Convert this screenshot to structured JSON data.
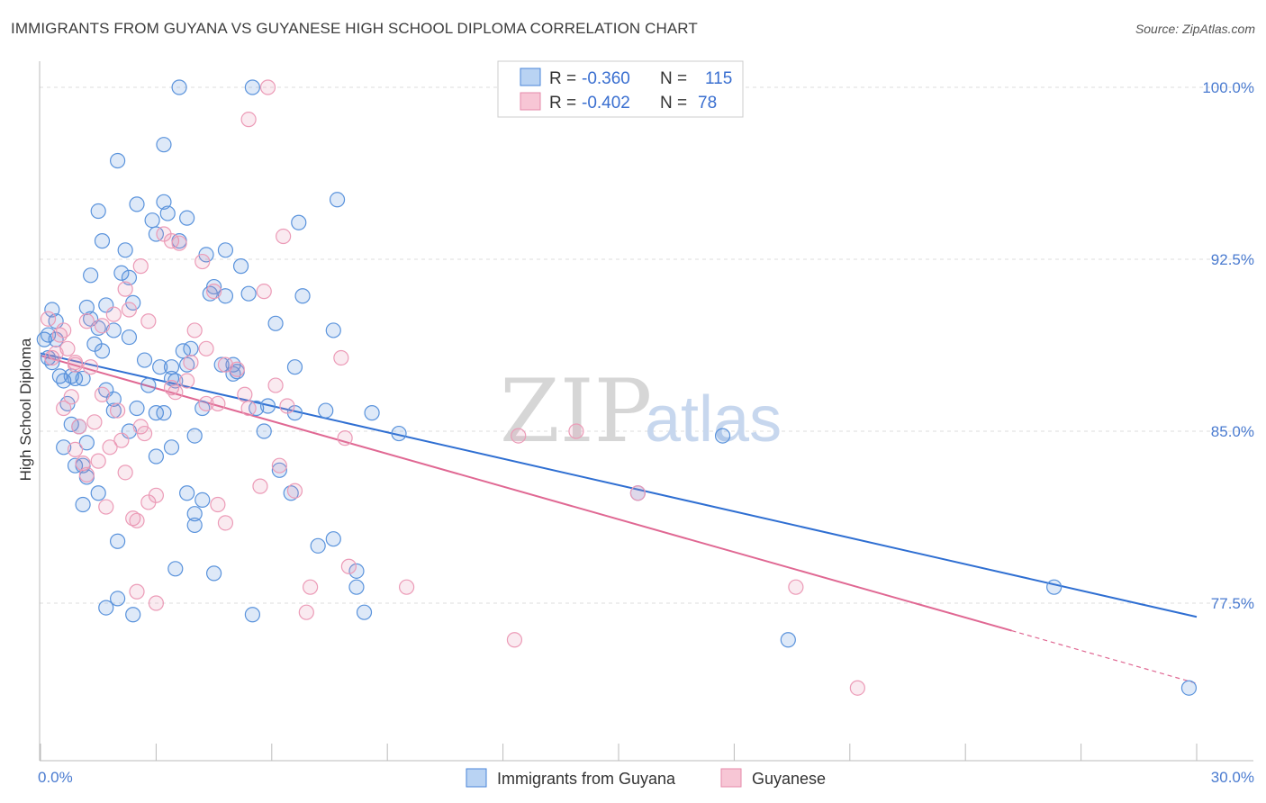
{
  "title": "IMMIGRANTS FROM GUYANA VS GUYANESE HIGH SCHOOL DIPLOMA CORRELATION CHART",
  "source": "Source: ZipAtlas.com",
  "watermark": {
    "part1": "ZIP",
    "part2": "atlas"
  },
  "colors": {
    "blue": "#4a86d8",
    "pink": "#e68aaa",
    "blue_line": "#2f6fd2",
    "pink_line": "#e06893",
    "grid": "#dddddd",
    "tick_label": "#4a7bd0"
  },
  "legend": {
    "rows": [
      {
        "r_label": "R = ",
        "r_value": "-0.360",
        "n_label": "N = ",
        "n_value": "115",
        "color": "blue"
      },
      {
        "r_label": "R = ",
        "r_value": "-0.402",
        "n_label": "N = ",
        "n_value": "78",
        "color": "pink"
      }
    ]
  },
  "bottom_legend": [
    "Immigrants from Guyana",
    "Guyanese"
  ],
  "chart_data": {
    "type": "scatter",
    "title": "IMMIGRANTS FROM GUYANA VS GUYANESE HIGH SCHOOL DIPLOMA CORRELATION CHART",
    "xlabel": "",
    "ylabel": "High School Diploma",
    "xlim": [
      0,
      30
    ],
    "ylim": [
      71.6,
      101.5
    ],
    "x_tick_labels": [
      {
        "value": 0,
        "label": "0.0%"
      },
      {
        "value": 30,
        "label": "30.0%"
      }
    ],
    "y_tick_labels": [
      {
        "value": 100,
        "label": "100.0%"
      },
      {
        "value": 92.5,
        "label": "92.5%"
      },
      {
        "value": 85,
        "label": "85.0%"
      },
      {
        "value": 77.5,
        "label": "77.5%"
      }
    ],
    "grid": true,
    "legend_position": "top-center",
    "series": [
      {
        "name": "Immigrants from Guyana",
        "color": "#4a86d8",
        "trend": {
          "x0": 0,
          "y0": 88.4,
          "x1": 30,
          "y1": 76.9
        },
        "points": [
          [
            0.1,
            89.0
          ],
          [
            0.3,
            90.3
          ],
          [
            0.4,
            89.8
          ],
          [
            0.2,
            88.2
          ],
          [
            0.5,
            87.4
          ],
          [
            0.6,
            87.2
          ],
          [
            0.8,
            87.4
          ],
          [
            0.9,
            87.3
          ],
          [
            0.7,
            86.2
          ],
          [
            0.6,
            84.3
          ],
          [
            0.8,
            85.3
          ],
          [
            1.0,
            85.2
          ],
          [
            1.2,
            84.5
          ],
          [
            0.9,
            83.5
          ],
          [
            1.1,
            83.5
          ],
          [
            1.2,
            83.0
          ],
          [
            1.5,
            82.3
          ],
          [
            1.1,
            81.8
          ],
          [
            0.2,
            89.2
          ],
          [
            0.4,
            89.0
          ],
          [
            1.2,
            90.4
          ],
          [
            1.3,
            89.9
          ],
          [
            1.5,
            89.5
          ],
          [
            1.4,
            88.8
          ],
          [
            1.9,
            89.4
          ],
          [
            2.3,
            89.1
          ],
          [
            2.1,
            91.9
          ],
          [
            2.2,
            92.9
          ],
          [
            1.6,
            93.3
          ],
          [
            1.5,
            94.6
          ],
          [
            2.0,
            96.8
          ],
          [
            1.3,
            91.8
          ],
          [
            1.7,
            90.5
          ],
          [
            2.4,
            90.6
          ],
          [
            2.3,
            91.7
          ],
          [
            2.5,
            94.9
          ],
          [
            2.9,
            94.2
          ],
          [
            3.2,
            95.0
          ],
          [
            3.3,
            94.5
          ],
          [
            3.0,
            93.6
          ],
          [
            3.6,
            93.3
          ],
          [
            3.8,
            94.3
          ],
          [
            3.2,
            97.5
          ],
          [
            3.6,
            100.0
          ],
          [
            5.5,
            100.0
          ],
          [
            4.3,
            92.7
          ],
          [
            4.8,
            92.9
          ],
          [
            5.2,
            92.2
          ],
          [
            4.4,
            91.0
          ],
          [
            4.5,
            91.3
          ],
          [
            5.4,
            91.0
          ],
          [
            4.8,
            90.9
          ],
          [
            6.8,
            90.9
          ],
          [
            3.7,
            88.5
          ],
          [
            3.9,
            88.6
          ],
          [
            3.4,
            87.8
          ],
          [
            3.8,
            87.9
          ],
          [
            3.1,
            87.8
          ],
          [
            3.5,
            87.2
          ],
          [
            2.8,
            87.0
          ],
          [
            2.5,
            86.0
          ],
          [
            3.0,
            85.8
          ],
          [
            3.2,
            85.8
          ],
          [
            1.9,
            86.4
          ],
          [
            1.9,
            85.9
          ],
          [
            2.3,
            85.0
          ],
          [
            3.0,
            83.9
          ],
          [
            3.4,
            84.3
          ],
          [
            4.0,
            84.8
          ],
          [
            4.2,
            86.0
          ],
          [
            4.7,
            87.9
          ],
          [
            5.1,
            87.6
          ],
          [
            5.0,
            87.9
          ],
          [
            5.0,
            87.5
          ],
          [
            5.6,
            86.0
          ],
          [
            5.8,
            85.0
          ],
          [
            5.9,
            86.1
          ],
          [
            6.2,
            83.3
          ],
          [
            6.5,
            82.3
          ],
          [
            6.1,
            89.7
          ],
          [
            6.6,
            87.8
          ],
          [
            6.7,
            94.1
          ],
          [
            7.7,
            95.1
          ],
          [
            7.6,
            89.4
          ],
          [
            7.4,
            85.9
          ],
          [
            6.6,
            85.8
          ],
          [
            8.6,
            85.8
          ],
          [
            3.8,
            82.3
          ],
          [
            4.0,
            81.4
          ],
          [
            4.2,
            82.0
          ],
          [
            4.0,
            80.9
          ],
          [
            2.0,
            80.2
          ],
          [
            1.7,
            77.3
          ],
          [
            2.4,
            77.0
          ],
          [
            2.0,
            77.7
          ],
          [
            3.5,
            79.0
          ],
          [
            4.5,
            78.8
          ],
          [
            5.5,
            77.0
          ],
          [
            7.2,
            80.0
          ],
          [
            7.6,
            80.3
          ],
          [
            8.2,
            78.9
          ],
          [
            8.2,
            78.2
          ],
          [
            8.4,
            77.1
          ],
          [
            9.3,
            84.9
          ],
          [
            15.5,
            82.3
          ],
          [
            17.7,
            84.8
          ],
          [
            19.4,
            75.9
          ],
          [
            26.3,
            78.2
          ],
          [
            29.8,
            73.8
          ],
          [
            1.6,
            88.5
          ],
          [
            0.3,
            88.0
          ],
          [
            1.1,
            87.3
          ],
          [
            1.7,
            86.8
          ],
          [
            2.7,
            88.1
          ],
          [
            3.4,
            87.3
          ]
        ]
      },
      {
        "name": "Guyanese",
        "color": "#e68aaa",
        "trend": {
          "x0": 0,
          "y0": 88.3,
          "x1": 25.2,
          "y1": 76.3,
          "dash_to_x": 30,
          "dash_to_y": 74.0
        },
        "points": [
          [
            0.2,
            89.9
          ],
          [
            0.3,
            88.2
          ],
          [
            0.5,
            89.2
          ],
          [
            0.6,
            89.4
          ],
          [
            0.7,
            88.6
          ],
          [
            0.9,
            88.0
          ],
          [
            0.6,
            86.0
          ],
          [
            0.8,
            86.5
          ],
          [
            1.0,
            85.2
          ],
          [
            0.9,
            84.2
          ],
          [
            1.1,
            83.6
          ],
          [
            1.2,
            83.1
          ],
          [
            1.4,
            85.4
          ],
          [
            1.6,
            86.6
          ],
          [
            1.5,
            83.7
          ],
          [
            1.7,
            81.7
          ],
          [
            1.8,
            84.3
          ],
          [
            2.0,
            85.9
          ],
          [
            2.1,
            84.6
          ],
          [
            2.2,
            83.2
          ],
          [
            2.4,
            81.2
          ],
          [
            2.5,
            81.1
          ],
          [
            2.6,
            85.2
          ],
          [
            2.7,
            84.9
          ],
          [
            2.8,
            81.9
          ],
          [
            3.0,
            82.2
          ],
          [
            3.0,
            77.5
          ],
          [
            2.5,
            78.0
          ],
          [
            1.2,
            89.8
          ],
          [
            1.6,
            89.6
          ],
          [
            1.9,
            90.1
          ],
          [
            2.2,
            91.2
          ],
          [
            2.3,
            90.3
          ],
          [
            2.8,
            89.8
          ],
          [
            3.2,
            93.6
          ],
          [
            3.4,
            93.3
          ],
          [
            3.6,
            93.2
          ],
          [
            2.6,
            92.2
          ],
          [
            4.2,
            92.4
          ],
          [
            5.4,
            98.6
          ],
          [
            5.9,
            100.0
          ],
          [
            6.3,
            93.5
          ],
          [
            5.8,
            91.1
          ],
          [
            4.5,
            91.1
          ],
          [
            4.0,
            89.4
          ],
          [
            3.9,
            88.0
          ],
          [
            4.3,
            88.6
          ],
          [
            4.6,
            86.2
          ],
          [
            4.3,
            86.2
          ],
          [
            3.4,
            86.9
          ],
          [
            3.8,
            87.2
          ],
          [
            4.8,
            87.9
          ],
          [
            5.1,
            87.7
          ],
          [
            5.3,
            86.6
          ],
          [
            5.4,
            86.0
          ],
          [
            6.1,
            87.0
          ],
          [
            6.4,
            86.1
          ],
          [
            7.8,
            88.2
          ],
          [
            7.9,
            84.7
          ],
          [
            4.8,
            81.0
          ],
          [
            4.6,
            81.8
          ],
          [
            6.2,
            83.5
          ],
          [
            5.7,
            82.6
          ],
          [
            6.6,
            82.4
          ],
          [
            8.0,
            79.1
          ],
          [
            6.9,
            77.1
          ],
          [
            7.0,
            78.2
          ],
          [
            9.5,
            78.2
          ],
          [
            12.3,
            75.9
          ],
          [
            12.4,
            84.8
          ],
          [
            13.9,
            85.0
          ],
          [
            15.5,
            82.3
          ],
          [
            19.6,
            78.2
          ],
          [
            21.2,
            73.8
          ],
          [
            0.4,
            88.4
          ],
          [
            1.3,
            87.8
          ],
          [
            0.9,
            87.9
          ],
          [
            3.5,
            86.7
          ]
        ]
      }
    ]
  }
}
